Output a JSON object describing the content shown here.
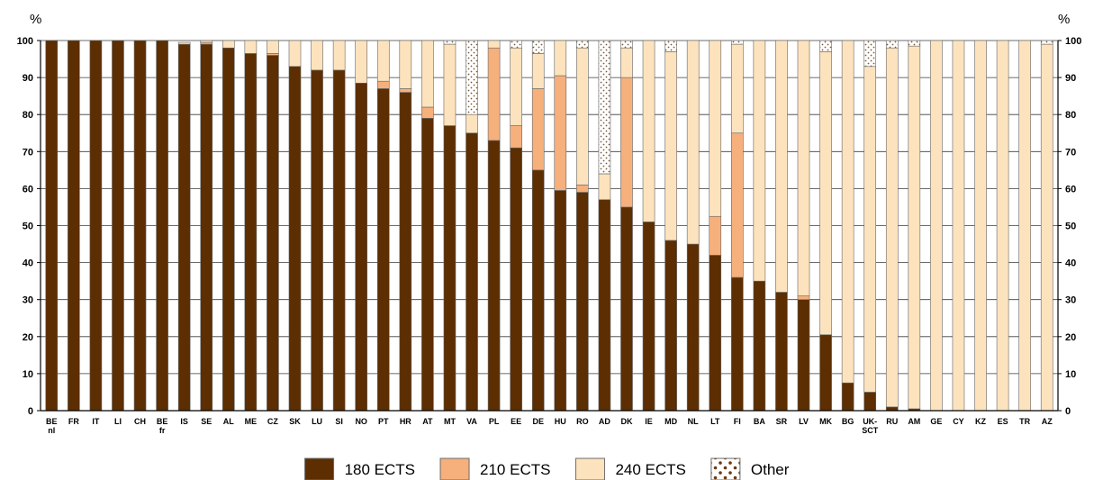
{
  "chart_data": {
    "type": "bar",
    "stacked": true,
    "y_unit_label": "%",
    "ylim": [
      0,
      100
    ],
    "yticks": [
      0,
      10,
      20,
      30,
      40,
      50,
      60,
      70,
      80,
      90,
      100
    ],
    "grid": true,
    "legend_position": "bottom",
    "categories": [
      [
        "BE",
        "nl"
      ],
      [
        "FR"
      ],
      [
        "IT"
      ],
      [
        "LI"
      ],
      [
        "CH"
      ],
      [
        "BE",
        "fr"
      ],
      [
        "IS"
      ],
      [
        "SE"
      ],
      [
        "AL"
      ],
      [
        "ME"
      ],
      [
        "CZ"
      ],
      [
        "SK"
      ],
      [
        "LU"
      ],
      [
        "SI"
      ],
      [
        "NO"
      ],
      [
        "PT"
      ],
      [
        "HR"
      ],
      [
        "AT"
      ],
      [
        "MT"
      ],
      [
        "VA"
      ],
      [
        "PL"
      ],
      [
        "EE"
      ],
      [
        "DE"
      ],
      [
        "HU"
      ],
      [
        "RO"
      ],
      [
        "AD"
      ],
      [
        "DK"
      ],
      [
        "IE"
      ],
      [
        "MD"
      ],
      [
        "NL"
      ],
      [
        "LT"
      ],
      [
        "FI"
      ],
      [
        "BA"
      ],
      [
        "SR"
      ],
      [
        "LV"
      ],
      [
        "MK"
      ],
      [
        "BG"
      ],
      [
        "UK-",
        "SCT"
      ],
      [
        "RU"
      ],
      [
        "AM"
      ],
      [
        "GE"
      ],
      [
        "CY"
      ],
      [
        "KZ"
      ],
      [
        "ES"
      ],
      [
        "TR"
      ],
      [
        "AZ"
      ]
    ],
    "series": [
      {
        "name": "180 ECTS",
        "color": "#5c2e02",
        "values": [
          100,
          100,
          100,
          100,
          100,
          100,
          99,
          99,
          98,
          96.5,
          96,
          93,
          92,
          92,
          88.5,
          87,
          86,
          79,
          77,
          75,
          73,
          71,
          65,
          59.5,
          59,
          57,
          55,
          51,
          46,
          45,
          42,
          36,
          35,
          32,
          30,
          20.5,
          7.5,
          5,
          1,
          0.5,
          0,
          0,
          0,
          0,
          0,
          0
        ]
      },
      {
        "name": "210 ECTS",
        "color": "#f6b07c",
        "values": [
          0,
          0,
          0,
          0,
          0,
          0,
          0,
          0.5,
          0,
          0,
          0.5,
          0,
          0,
          0,
          0,
          2,
          1,
          3,
          0,
          0,
          25,
          6,
          22,
          31,
          2,
          0,
          35,
          0,
          0,
          0,
          10.5,
          39,
          0,
          0,
          1,
          0,
          0,
          0,
          0,
          0,
          0,
          0,
          0,
          0,
          0,
          0
        ]
      },
      {
        "name": "240 ECTS",
        "color": "#fde3bd",
        "values": [
          0,
          0,
          0,
          0,
          0,
          0,
          0.5,
          0.5,
          2,
          3.5,
          3.5,
          7,
          8,
          8,
          11.5,
          11,
          13,
          18,
          22,
          5,
          2,
          21,
          9.5,
          9.5,
          37,
          7,
          8,
          49,
          51,
          55,
          47.5,
          24,
          65,
          68,
          69,
          76.5,
          92.5,
          88,
          97,
          98,
          100,
          100,
          100,
          100,
          100,
          99
        ]
      },
      {
        "name": "Other",
        "color": "#ffffff",
        "pattern": "dots",
        "values": [
          0,
          0,
          0,
          0,
          0,
          0,
          0,
          0,
          0,
          0,
          0,
          0,
          0,
          0,
          0,
          0,
          0,
          0,
          1,
          20,
          0,
          2,
          3.5,
          0,
          2,
          36,
          2,
          0,
          3,
          0,
          0,
          1,
          0,
          0,
          0,
          3,
          0,
          7,
          2,
          1.5,
          0,
          0,
          0,
          0,
          0,
          1
        ]
      }
    ]
  }
}
